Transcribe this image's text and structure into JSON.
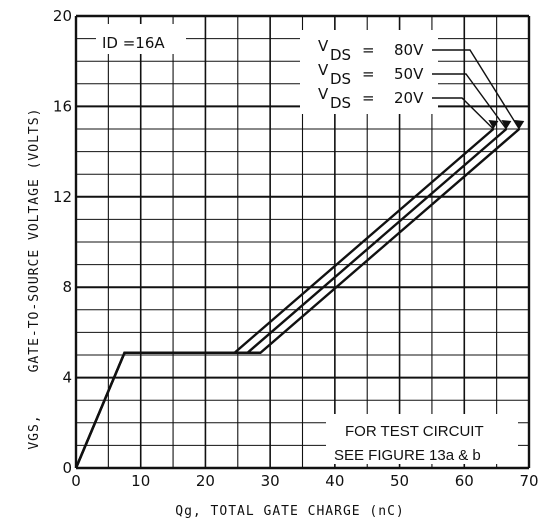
{
  "chart_data": {
    "type": "line",
    "title": "",
    "xlabel": "Qg,  TOTAL GATE CHARGE (nC)",
    "ylabel_main": "GATE-TO-SOURCE VOLTAGE (VOLTS)",
    "ylabel_symbol": "VGS,",
    "xlim": [
      0,
      70
    ],
    "ylim": [
      0,
      20
    ],
    "x_ticks": [
      0,
      10,
      20,
      30,
      40,
      50,
      60,
      70
    ],
    "y_ticks": [
      0,
      4,
      8,
      12,
      16,
      20
    ],
    "grid": true,
    "series": [
      {
        "name": "VDS = 80V",
        "x": [
          0,
          7.5,
          28.5,
          68.5
        ],
        "y": [
          0,
          5.1,
          5.1,
          15
        ]
      },
      {
        "name": "VDS = 50V",
        "x": [
          0,
          7.5,
          26.5,
          66.5
        ],
        "y": [
          0,
          5.1,
          5.1,
          15
        ]
      },
      {
        "name": "VDS = 20V",
        "x": [
          0,
          7.5,
          24.5,
          64.5
        ],
        "y": [
          0,
          5.1,
          5.1,
          15
        ]
      }
    ],
    "annotations": {
      "id_label": "ID =16A",
      "legend": [
        {
          "symbol": "V",
          "sub": "DS",
          "eq": "=",
          "value": "80V"
        },
        {
          "symbol": "V",
          "sub": "DS",
          "eq": "=",
          "value": "50V"
        },
        {
          "symbol": "V",
          "sub": "DS",
          "eq": "=",
          "value": "20V"
        }
      ],
      "note_line1": "FOR TEST CIRCUIT",
      "note_line2": "SEE FIGURE 13a & b"
    }
  },
  "colors": {
    "line": "#111111",
    "grid": "#111111",
    "background": "#ffffff"
  }
}
